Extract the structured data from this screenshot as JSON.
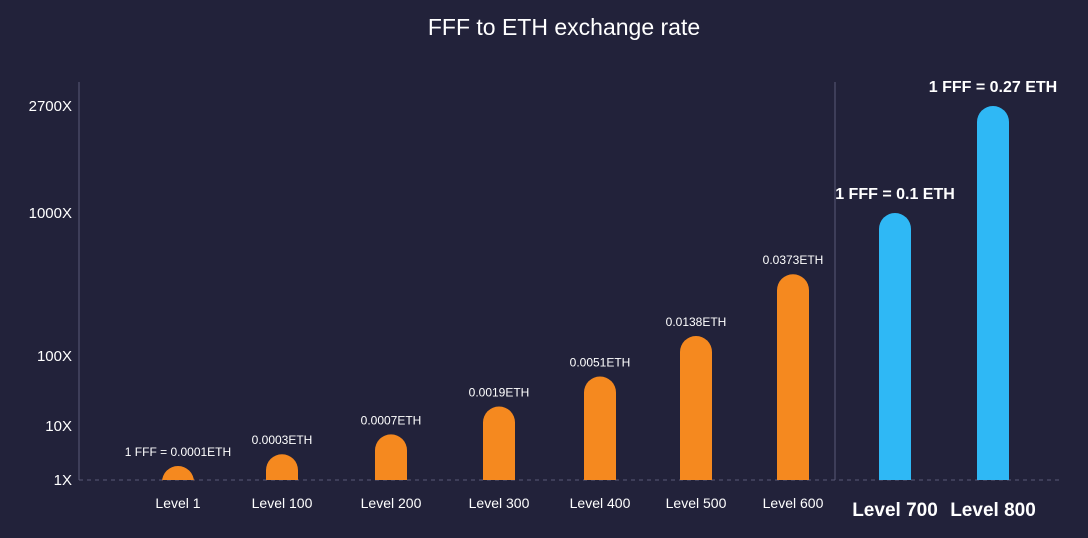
{
  "chart_data": {
    "type": "bar",
    "title": "FFF to ETH exchange rate",
    "xlabel": "",
    "ylabel": "",
    "y_scale": "log",
    "ylim": [
      1,
      2700
    ],
    "y_ticks": [
      {
        "value": 1,
        "label": "1X"
      },
      {
        "value": 10,
        "label": "10X"
      },
      {
        "value": 100,
        "label": "100X"
      },
      {
        "value": 1000,
        "label": "1000X"
      },
      {
        "value": 2700,
        "label": "2700X"
      }
    ],
    "categories": [
      "Level 1",
      "Level 100",
      "Level 200",
      "Level 300",
      "Level 400",
      "Level 500",
      "Level 600",
      "Level 700",
      "Level 800"
    ],
    "values": [
      1,
      3,
      7,
      19,
      51,
      138,
      373,
      1000,
      2700
    ],
    "data_labels": [
      "1 FFF = 0.0001ETH",
      "0.0003ETH",
      "0.0007ETH",
      "0.0019ETH",
      "0.0051ETH",
      "0.0138ETH",
      "0.0373ETH",
      "1 FFF = 0.1 ETH",
      "1 FFF = 0.27 ETH"
    ],
    "highlighted": [
      false,
      false,
      false,
      false,
      false,
      false,
      false,
      true,
      true
    ],
    "grid": false,
    "colors": {
      "background": "#22223a",
      "bar": "#f5891f",
      "bar_highlight": "#2fb8f5",
      "axis": "#5a5a78",
      "text": "#ffffff"
    }
  }
}
